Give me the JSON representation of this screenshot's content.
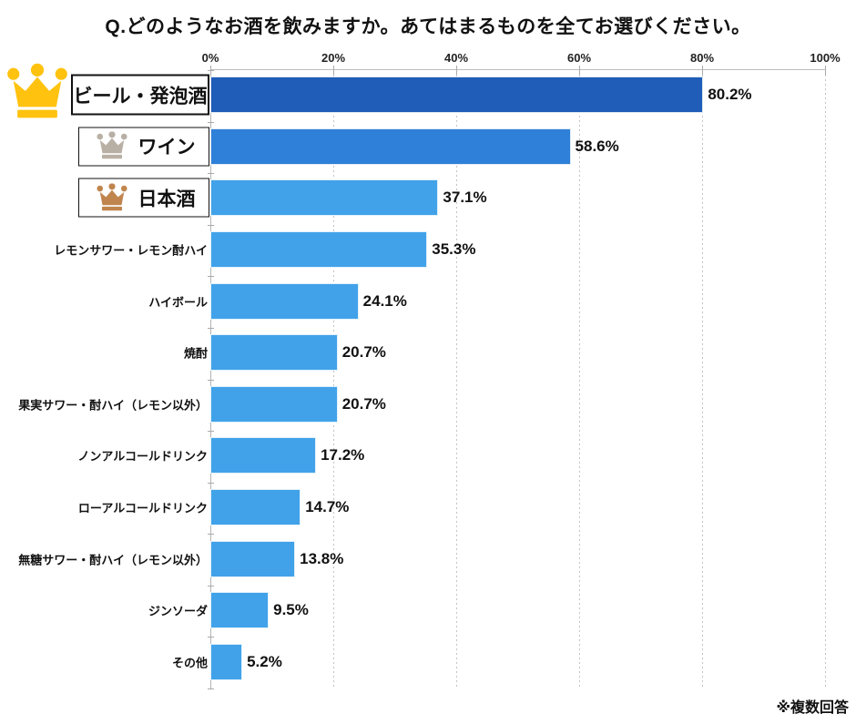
{
  "title": "Q.どのようなお酒を飲みますか。あてはまるものを全てお選びください。",
  "note": "※複数回答",
  "chart_data": {
    "type": "bar",
    "orientation": "horizontal",
    "title": "Q.どのようなお酒を飲みますか。あてはまるものを全てお選びください。",
    "categories": [
      "ビール・発泡酒",
      "ワイン",
      "日本酒",
      "レモンサワー・レモン酎ハイ",
      "ハイボール",
      "焼酎",
      "果実サワー・酎ハイ（レモン以外）",
      "ノンアルコールドリンク",
      "ローアルコールドリンク",
      "無糖サワー・酎ハイ（レモン以外）",
      "ジンソーダ",
      "その他"
    ],
    "values": [
      80.2,
      58.6,
      37.1,
      35.3,
      24.1,
      20.7,
      20.7,
      17.2,
      14.7,
      13.8,
      9.5,
      5.2
    ],
    "value_labels": [
      "80.2%",
      "58.6%",
      "37.1%",
      "35.3%",
      "24.1%",
      "20.7%",
      "20.7%",
      "17.2%",
      "14.7%",
      "13.8%",
      "9.5%",
      "5.2%"
    ],
    "xlabel": "",
    "ylabel": "",
    "xlim": [
      0,
      100
    ],
    "xticks": [
      0,
      20,
      40,
      60,
      80,
      100
    ],
    "xtick_labels": [
      "0%",
      "20%",
      "40%",
      "60%",
      "80%",
      "100%"
    ],
    "grid": "vertical-dotted",
    "legend": "none",
    "annotation": "※複数回答",
    "bar_colors": {
      "rank1": "#1f5db8",
      "rank2": "#2f80d8",
      "default": "#41a2e9"
    },
    "rank_crowns": [
      {
        "rank": 1,
        "name": "gold-crown",
        "color": "#FFC20E"
      },
      {
        "rank": 2,
        "name": "silver-crown",
        "color": "#B9B0A5"
      },
      {
        "rank": 3,
        "name": "bronze-crown",
        "color": "#C0854E"
      }
    ]
  }
}
